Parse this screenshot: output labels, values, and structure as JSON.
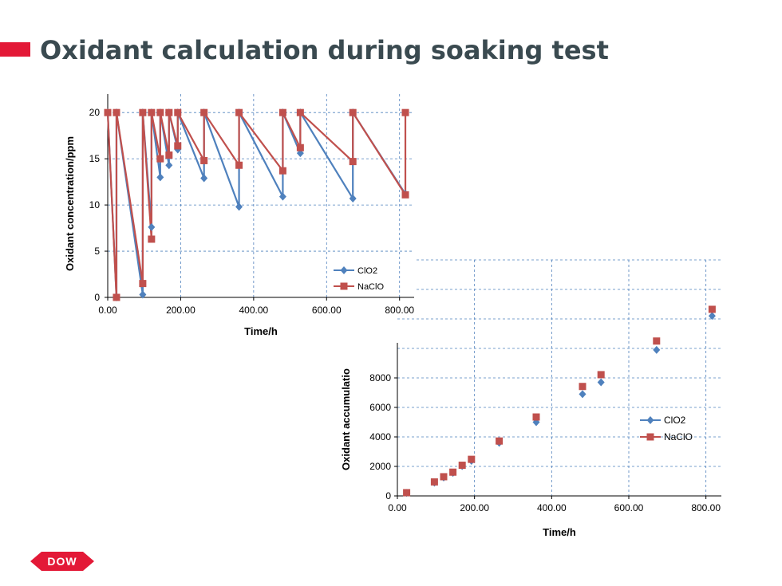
{
  "header": {
    "title": "Oxidant calculation during soaking test",
    "accent_color": "#e31937"
  },
  "logo": {
    "text": "DOW"
  },
  "colors": {
    "clo2": "#4f81bd",
    "naclo": "#c0504d",
    "grid": "#4f81bd"
  },
  "chart_data": [
    {
      "type": "line",
      "ylabel": "Oxidant concentration/ppm",
      "xlabel": "Time/h",
      "xlim": [
        0,
        840
      ],
      "ylim": [
        0,
        22
      ],
      "xticks": [
        "0.00",
        "200.00",
        "400.00",
        "600.00",
        "800.00"
      ],
      "xtick_values": [
        0,
        200,
        400,
        600,
        800
      ],
      "yticks": [
        "0",
        "5",
        "10",
        "15",
        "20"
      ],
      "ytick_values": [
        0,
        5,
        10,
        15,
        20
      ],
      "grid": true,
      "legend": "bottom-right",
      "series": [
        {
          "name": "ClO2",
          "marker": "diamond",
          "x": [
            0,
            24,
            24,
            96,
            96,
            120,
            120,
            144,
            144,
            168,
            168,
            192,
            192,
            264,
            264,
            360,
            360,
            480,
            480,
            528,
            528,
            672,
            672,
            816
          ],
          "y": [
            20,
            0,
            20,
            0.3,
            20,
            7.6,
            20,
            13,
            20,
            14.3,
            20,
            16,
            20,
            12.9,
            20,
            9.8,
            20,
            10.9,
            20,
            15.6,
            20,
            10.7,
            20,
            11.2
          ]
        },
        {
          "name": "NaClO",
          "marker": "square",
          "x": [
            0,
            24,
            24,
            96,
            96,
            120,
            120,
            144,
            144,
            168,
            168,
            192,
            192,
            264,
            264,
            360,
            360,
            480,
            480,
            528,
            528,
            672,
            672,
            816,
            816
          ],
          "y": [
            20,
            0,
            20,
            1.5,
            20,
            6.3,
            20,
            15,
            20,
            15.4,
            20,
            16.4,
            20,
            14.8,
            20,
            14.3,
            20,
            13.7,
            20,
            16.2,
            20,
            14.7,
            20,
            11.1,
            20
          ]
        }
      ]
    },
    {
      "type": "scatter",
      "ylabel": "Oxidant accumulatio",
      "xlabel": "Time/h",
      "xlim": [
        0,
        840
      ],
      "ylim": [
        0,
        16000
      ],
      "xticks": [
        "0.00",
        "200.00",
        "400.00",
        "600.00",
        "800.00"
      ],
      "xtick_values": [
        0,
        200,
        400,
        600,
        800
      ],
      "yticks": [
        "0",
        "2000",
        "4000",
        "6000",
        "8000"
      ],
      "ytick_values": [
        0,
        2000,
        4000,
        6000,
        8000
      ],
      "grid": true,
      "legend": "right",
      "series": [
        {
          "name": "ClO2",
          "marker": "diamond",
          "x": [
            24,
            96,
            120,
            144,
            168,
            192,
            264,
            360,
            480,
            528,
            672,
            816
          ],
          "y": [
            200,
            900,
            1250,
            1560,
            2030,
            2380,
            3600,
            5000,
            6900,
            7700,
            9900,
            12200
          ]
        },
        {
          "name": "NaClO",
          "marker": "square",
          "x": [
            24,
            96,
            120,
            144,
            168,
            192,
            264,
            360,
            480,
            528,
            672,
            816
          ],
          "y": [
            220,
            950,
            1300,
            1610,
            2080,
            2480,
            3720,
            5350,
            7420,
            8220,
            10500,
            12650
          ]
        }
      ]
    }
  ]
}
